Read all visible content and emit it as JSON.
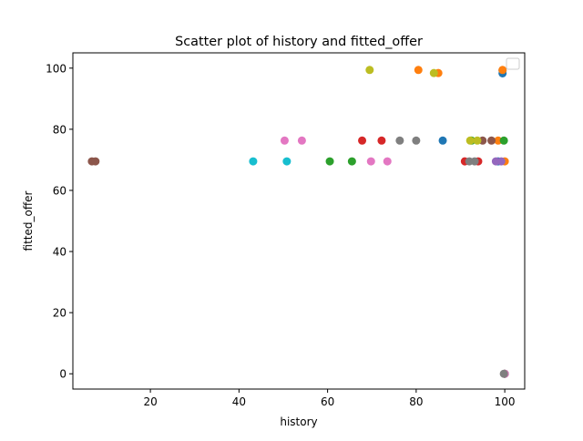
{
  "chart_data": {
    "type": "scatter",
    "title": "Scatter plot of history and fitted_offer",
    "xlabel": "history",
    "ylabel": "fitted_offer",
    "xlim": [
      2.5,
      104.5
    ],
    "ylim": [
      -5,
      105
    ],
    "xticks": [
      20,
      40,
      60,
      80,
      100
    ],
    "yticks": [
      0,
      20,
      40,
      60,
      80,
      100
    ],
    "grid": false,
    "legend": {
      "placement": "top-right",
      "entries": []
    },
    "series": [
      {
        "color": "#1f77b4",
        "points": [
          [
            86,
            76.3
          ],
          [
            99.5,
            98.3
          ],
          [
            99.5,
            99.3
          ],
          [
            98.5,
            69.5
          ]
        ]
      },
      {
        "color": "#ff7f0e",
        "points": [
          [
            80.5,
            99.4
          ],
          [
            85,
            98.4
          ],
          [
            99.5,
            99.4
          ],
          [
            100,
            69.5
          ],
          [
            98.5,
            76.3
          ]
        ]
      },
      {
        "color": "#2ca02c",
        "points": [
          [
            60.5,
            69.5
          ],
          [
            65.5,
            69.5
          ],
          [
            99.8,
            76.3
          ],
          [
            92.5,
            76.3
          ],
          [
            100,
            0
          ]
        ]
      },
      {
        "color": "#d62728",
        "points": [
          [
            67.8,
            76.3
          ],
          [
            72.2,
            76.3
          ],
          [
            91,
            69.5
          ],
          [
            94,
            69.5
          ]
        ]
      },
      {
        "color": "#9467bd",
        "points": [
          [
            98,
            69.5
          ],
          [
            99.2,
            69.5
          ],
          [
            100,
            0
          ]
        ]
      },
      {
        "color": "#8c564b",
        "points": [
          [
            6.8,
            69.5
          ],
          [
            7.6,
            69.5
          ],
          [
            95,
            76.3
          ],
          [
            97,
            76.3
          ],
          [
            100,
            0
          ]
        ]
      },
      {
        "color": "#e377c2",
        "points": [
          [
            50.3,
            76.3
          ],
          [
            54.2,
            76.3
          ],
          [
            69.8,
            69.5
          ],
          [
            73.5,
            69.5
          ],
          [
            100,
            0
          ]
        ]
      },
      {
        "color": "#7f7f7f",
        "points": [
          [
            76.3,
            76.3
          ],
          [
            80,
            76.3
          ],
          [
            92,
            69.5
          ],
          [
            93.2,
            69.5
          ],
          [
            99.8,
            0
          ]
        ]
      },
      {
        "color": "#bcbd22",
        "points": [
          [
            69.5,
            99.4
          ],
          [
            84,
            98.4
          ],
          [
            92.2,
            76.3
          ],
          [
            93.8,
            76.3
          ]
        ]
      },
      {
        "color": "#17becf",
        "points": [
          [
            43.2,
            69.5
          ],
          [
            50.8,
            69.5
          ]
        ]
      }
    ]
  }
}
